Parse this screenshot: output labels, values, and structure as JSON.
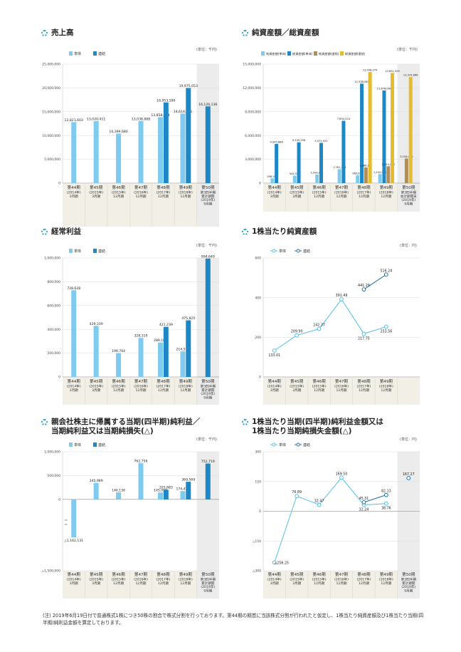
{
  "colors": {
    "single": "#7fcbef",
    "consol": "#1e87c6",
    "consol_light": "#b58c51",
    "consol_dark": "#e5bb2f",
    "band": "#f1efe6",
    "line_single": "#53bfea",
    "line_consol": "#1f6fa8"
  },
  "period_labels": [
    [
      "第44期",
      "(2014年)",
      "3月期"
    ],
    [
      "第45期",
      "(2015年)",
      "3月期"
    ],
    [
      "第46期",
      "(2015年)",
      "12月期"
    ],
    [
      "第47期",
      "(2016年)",
      "12月期"
    ],
    [
      "第48期",
      "(2017年)",
      "12月期"
    ],
    [
      "第49期",
      "(2018年)",
      "12月期"
    ],
    [
      "第50期",
      "第3四半期",
      "累計期間",
      "(2019年)",
      "9月期"
    ]
  ],
  "period_labels_na": [
    [
      "第44期",
      "(2014年)",
      "3月期"
    ],
    [
      "第45期",
      "(2015年)",
      "3月期"
    ],
    [
      "第46期",
      "(2015年)",
      "12月期"
    ],
    [
      "第47期",
      "(2016年)",
      "12月期"
    ],
    [
      "第48期",
      "(2017年)",
      "12月期"
    ],
    [
      "第49期",
      "(2018年)",
      "12月期"
    ],
    [
      "第50期",
      "第3四半期",
      "会計期間末",
      "(2019年)",
      "9月期"
    ]
  ],
  "period_labels_short": [
    [
      "第44期",
      "(2014年)",
      "3月期"
    ],
    [
      "第45期",
      "(2015年)",
      "3月期"
    ],
    [
      "第46期",
      "(2015年)",
      "12月期"
    ],
    [
      "第47期",
      "(2016年)",
      "12月期"
    ],
    [
      "第48期",
      "(2017年)",
      "12月期"
    ],
    [
      "第49期",
      "(2018年)",
      "12月期"
    ]
  ],
  "panels": {
    "sales": {
      "title": "売上高",
      "unit": "(単位：千円)"
    },
    "net_assets": {
      "title": "純資産額／総資産額",
      "unit": "(単位：千円)"
    },
    "ordinary": {
      "title": "経常利益",
      "unit": "(単位：千円)"
    },
    "bps": {
      "title": "1株当たり純資産額",
      "unit": "(単位：円)"
    },
    "net_income": {
      "title_line1": "親会社株主に帰属する当期(四半期)純利益／",
      "title_line2": "当期純利益又は当期純損失(△)",
      "unit": "(単位：千円)"
    },
    "eps": {
      "title_line1": "1株当たり当期(四半期)純利益金額又は",
      "title_line2": "1株当たり当期純損失金額(△)",
      "unit": "(単位：円)"
    }
  },
  "chart_data": [
    {
      "id": "sales",
      "type": "bar",
      "title": "売上高",
      "ylim": [
        0,
        25000000
      ],
      "yticks": [
        "0",
        "5,000,000",
        "10,000,000",
        "15,000,000",
        "20,000,000",
        "25,000,000"
      ],
      "categories": [
        "第44期",
        "第45期",
        "第46期",
        "第47期",
        "第48期",
        "第49期",
        "第50期"
      ],
      "series": [
        {
          "name": "単体",
          "values": [
            12821603,
            13020411,
            10399680,
            13038888,
            13858034,
            14614235,
            null
          ],
          "labels": [
            "12,821,603",
            "13,020,411",
            "10,399,680",
            "13,038,888",
            "13,858,034",
            "14,614,235",
            ""
          ]
        },
        {
          "name": "連結",
          "values": [
            null,
            null,
            null,
            null,
            16953590,
            19975053,
            16126136
          ],
          "labels": [
            "",
            "",
            "",
            "",
            "16,953,590",
            "19,975,053",
            "16,126,136"
          ]
        }
      ]
    },
    {
      "id": "net_assets",
      "type": "bar",
      "title": "純資産額／総資産額",
      "ylim": [
        0,
        15000000
      ],
      "yticks": [
        "0",
        "3,000,000",
        "6,000,000",
        "9,000,000",
        "12,000,000",
        "15,000,000"
      ],
      "categories": [
        "第44期",
        "第45期",
        "第46期",
        "第47期",
        "第48期",
        "第49期",
        "第50期"
      ],
      "series": [
        {
          "name": "純資産額(単体)",
          "values": [
            598562,
            944551,
            1090681,
            1761716,
            980875,
            1142035,
            null
          ],
          "labels": [
            "598,562",
            "944,551",
            "1,090,681",
            "1,761,716",
            "980,875",
            "1,142,035",
            ""
          ]
        },
        {
          "name": "総資産額(単体)",
          "values": [
            4945886,
            5149258,
            5071921,
            7854524,
            12538569,
            11678096,
            null
          ],
          "labels": [
            "4,945,886",
            "5,149,258",
            "5,071,921",
            "7,854,524",
            "12,538,569",
            "11,678,096",
            ""
          ]
        },
        {
          "name": "純資産額(連結)",
          "values": [
            null,
            null,
            null,
            null,
            1986821,
            2124094,
            3106453
          ],
          "labels": [
            "",
            "",
            "",
            "",
            "1,986,821",
            "2,124,094",
            "3,106,453"
          ]
        },
        {
          "name": "総資産額(連結)",
          "values": [
            null,
            null,
            null,
            null,
            13998074,
            13891029,
            13374666
          ],
          "labels": [
            "",
            "",
            "",
            "",
            "13,998,074",
            "13,891,029",
            "13,374,666"
          ]
        }
      ]
    },
    {
      "id": "ordinary",
      "type": "bar",
      "title": "経常利益",
      "ylim": [
        0,
        1000000
      ],
      "yticks": [
        "0",
        "200,000",
        "400,000",
        "600,000",
        "800,000",
        "1,000,000"
      ],
      "categories": [
        "第44期",
        "第45期",
        "第46期",
        "第47期",
        "第48期",
        "第49期",
        "第50期"
      ],
      "series": [
        {
          "name": "単体",
          "values": [
            728628,
            429339,
            199764,
            328319,
            289161,
            214576,
            null
          ],
          "labels": [
            "728,628",
            "429,339",
            "199,764",
            "328,319",
            "289,161",
            "214,576",
            ""
          ]
        },
        {
          "name": "連結",
          "values": [
            null,
            null,
            null,
            null,
            421239,
            475825,
            994649
          ],
          "labels": [
            "",
            "",
            "",
            "",
            "421,239",
            "475,825",
            "994,649"
          ]
        }
      ]
    },
    {
      "id": "bps",
      "type": "line",
      "title": "1株当たり純資産額",
      "ylim": [
        0,
        600
      ],
      "yticks": [
        "0",
        "200",
        "400",
        "600"
      ],
      "categories": [
        "第44期",
        "第45期",
        "第46期",
        "第47期",
        "第48期",
        "第49期"
      ],
      "series": [
        {
          "name": "単体",
          "values": [
            133.01,
            209.9,
            242.37,
            391.49,
            217.75,
            253.56
          ],
          "labels": [
            "133.01",
            "209.90",
            "242.37",
            "391.49",
            "217.75",
            "253.56"
          ]
        },
        {
          "name": "連結",
          "values": [
            null,
            null,
            null,
            null,
            441.29,
            516.24
          ],
          "labels": [
            "",
            "",
            "",
            "",
            "441.29",
            "516.24"
          ]
        }
      ]
    },
    {
      "id": "net_income",
      "type": "bar",
      "title": "親会社株主に帰属する当期(四半期)純利益／当期純利益又は当期純損失(△)",
      "ylim": [
        -1500000,
        1000000
      ],
      "yticks": [
        "△1,500,000",
        "0",
        "500,000",
        "1,000,000"
      ],
      "categories": [
        "第44期",
        "第45期",
        "第46期",
        "第47期",
        "第48期",
        "第49期",
        "第50期"
      ],
      "series": [
        {
          "name": "単体",
          "values": [
            -1162131,
            345989,
            146130,
            762756,
            145055,
            174430,
            null
          ],
          "labels": [
            "△1,162,131",
            "345,989",
            "146,130",
            "762,756",
            "145,055",
            "174,430",
            ""
          ]
        },
        {
          "name": "連結",
          "values": [
            null,
            null,
            null,
            null,
            203883,
            369569,
            752719
          ],
          "labels": [
            "",
            "",
            "",
            "",
            "203,883",
            "369,569",
            "752,719"
          ]
        }
      ]
    },
    {
      "id": "eps",
      "type": "line",
      "title": "1株当たり当期(四半期)純利益金額又は1株当たり当期純損失金額(△)",
      "ylim": [
        -300,
        300
      ],
      "yticks": [
        "△300",
        "△150",
        "0",
        "150",
        "300"
      ],
      "categories": [
        "第44期",
        "第45期",
        "第46期",
        "第47期",
        "第48期",
        "第49期",
        "第50期"
      ],
      "series": [
        {
          "name": "単体",
          "values": [
            -258.25,
            76.89,
            32.47,
            169.5,
            32.24,
            38.76,
            null
          ],
          "labels": [
            "△258.25",
            "76.89",
            "32.47",
            "169.50",
            "32.24",
            "38.76",
            ""
          ]
        },
        {
          "name": "連結",
          "values": [
            null,
            null,
            null,
            null,
            45.31,
            82.13,
            167.27
          ],
          "labels": [
            "",
            "",
            "",
            "",
            "45.31",
            "82.13",
            "167.27"
          ]
        }
      ]
    }
  ],
  "footnote": "(注) 2019年6月19日付で普通株式1株につき50株の割合で株式分割を行っております。第44期の期首に当該株式分割が行われたと仮定し、1株当たり純資産額及び1株当たり当期(四半期)純利益金額を算定しております。"
}
